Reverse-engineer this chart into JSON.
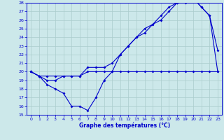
{
  "title": "Graphe des températures (°C)",
  "bg_color": "#cce8ea",
  "grid_color": "#aacccc",
  "line_color": "#0000cc",
  "axis_label_color": "#0000cc",
  "xlim": [
    -0.5,
    23.5
  ],
  "ylim": [
    15,
    28
  ],
  "xticks": [
    0,
    1,
    2,
    3,
    4,
    5,
    6,
    7,
    8,
    9,
    10,
    11,
    12,
    13,
    14,
    15,
    16,
    17,
    18,
    19,
    20,
    21,
    22,
    23
  ],
  "yticks": [
    15,
    16,
    17,
    18,
    19,
    20,
    21,
    22,
    23,
    24,
    25,
    26,
    27,
    28
  ],
  "series1_x": [
    0,
    1,
    2,
    3,
    4,
    5,
    6,
    7,
    8,
    9,
    10,
    11,
    12,
    13,
    14,
    15,
    16,
    17,
    18,
    19,
    20,
    21,
    22,
    23
  ],
  "series1_y": [
    20,
    19.5,
    19.5,
    19.5,
    19.5,
    19.5,
    19.5,
    20,
    20,
    20,
    20,
    20,
    20,
    20,
    20,
    20,
    20,
    20,
    20,
    20,
    20,
    20,
    20,
    20
  ],
  "series2_x": [
    0,
    1,
    2,
    3,
    4,
    5,
    6,
    7,
    8,
    9,
    10,
    11,
    12,
    13,
    14,
    15,
    16,
    17,
    18,
    19,
    20,
    21,
    22,
    23
  ],
  "series2_y": [
    20,
    19.5,
    18.5,
    18,
    17.5,
    16,
    16,
    15.5,
    17,
    19,
    20,
    22,
    23,
    24,
    25,
    25.5,
    26,
    27,
    28,
    28,
    28.5,
    27.5,
    26.5,
    22.5
  ],
  "series3_x": [
    0,
    1,
    2,
    3,
    4,
    5,
    6,
    7,
    8,
    9,
    10,
    11,
    12,
    13,
    14,
    15,
    16,
    17,
    18,
    19,
    20,
    21,
    22,
    23
  ],
  "series3_y": [
    20,
    19.5,
    19,
    19,
    19.5,
    19.5,
    19.5,
    20.5,
    20.5,
    20.5,
    21,
    22,
    23,
    24,
    24.5,
    25.5,
    26.5,
    27.5,
    28,
    28.5,
    28.5,
    27.5,
    26.5,
    20
  ]
}
